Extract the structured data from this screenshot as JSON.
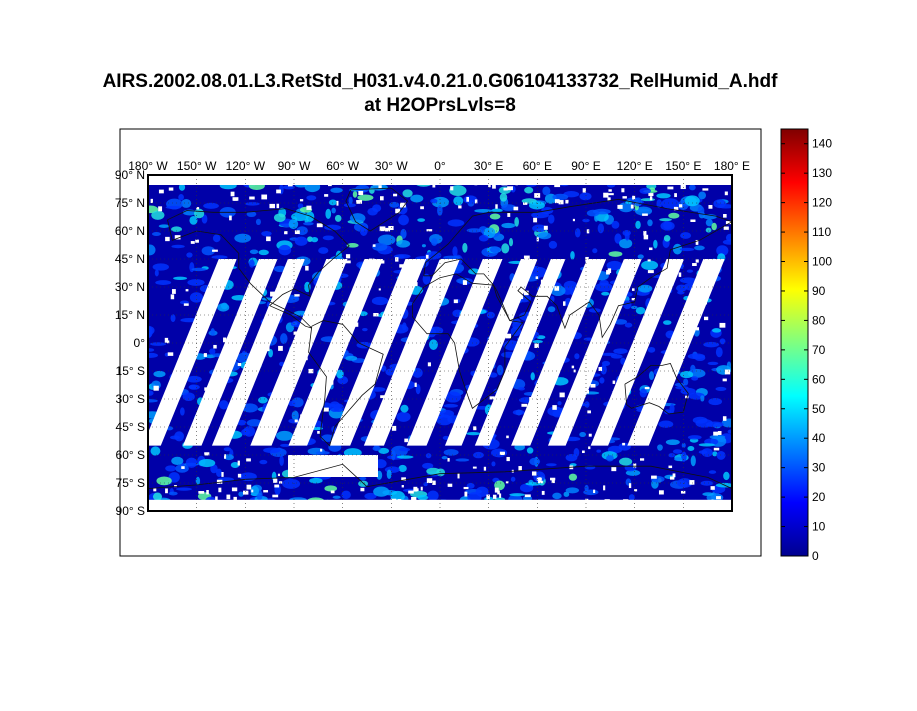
{
  "figure": {
    "title_line1": "AIRS.2002.08.01.L3.RetStd_H031.v4.0.21.0.G06104133732_RelHumid_A.hdf",
    "title_line2": "at H2OPrsLvls=8"
  },
  "map": {
    "projection": "equirectangular",
    "lon_labels": [
      "180° W",
      "150° W",
      "120° W",
      "90° W",
      "60° W",
      "30° W",
      "0°",
      "30° E",
      "60° E",
      "90° E",
      "120° E",
      "150° E",
      "180° E"
    ],
    "lat_labels": [
      "90° N",
      "75° N",
      "60° N",
      "45° N",
      "30° N",
      "15° N",
      "0°",
      "15° S",
      "30° S",
      "45° S",
      "60° S",
      "75° S",
      "90° S"
    ],
    "gridlines": "dotted",
    "missing_data_color": "#ffffff",
    "ocean_background_color": "#0000a8"
  },
  "colorbar": {
    "min": 0,
    "max": 145,
    "colormap": "jet",
    "ticks": [
      "0",
      "10",
      "20",
      "30",
      "40",
      "50",
      "60",
      "70",
      "80",
      "90",
      "100",
      "110",
      "120",
      "130",
      "140"
    ]
  }
}
